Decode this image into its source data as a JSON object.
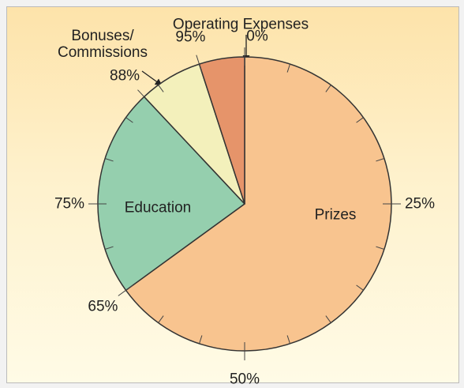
{
  "chart_data": {
    "type": "pie",
    "categories": [
      "Prizes",
      "Education",
      "Bonuses/ Commissions",
      "Operating Expenses"
    ],
    "values": [
      65,
      23,
      7,
      5
    ],
    "colors": [
      "#f8c48f",
      "#95cfae",
      "#f3f0bb",
      "#e6946a"
    ],
    "ticks": [
      {
        "value": 0,
        "label": "0%"
      },
      {
        "value": 25,
        "label": "25%"
      },
      {
        "value": 50,
        "label": "50%"
      },
      {
        "value": 65,
        "label": "65%"
      },
      {
        "value": 75,
        "label": "75%"
      },
      {
        "value": 88,
        "label": "88%"
      },
      {
        "value": 95,
        "label": "95%"
      }
    ],
    "minor_ticks": [
      0,
      5,
      10,
      15,
      20,
      25,
      30,
      35,
      40,
      45,
      50,
      55,
      60,
      65,
      70,
      75,
      80,
      85,
      90,
      95
    ]
  }
}
